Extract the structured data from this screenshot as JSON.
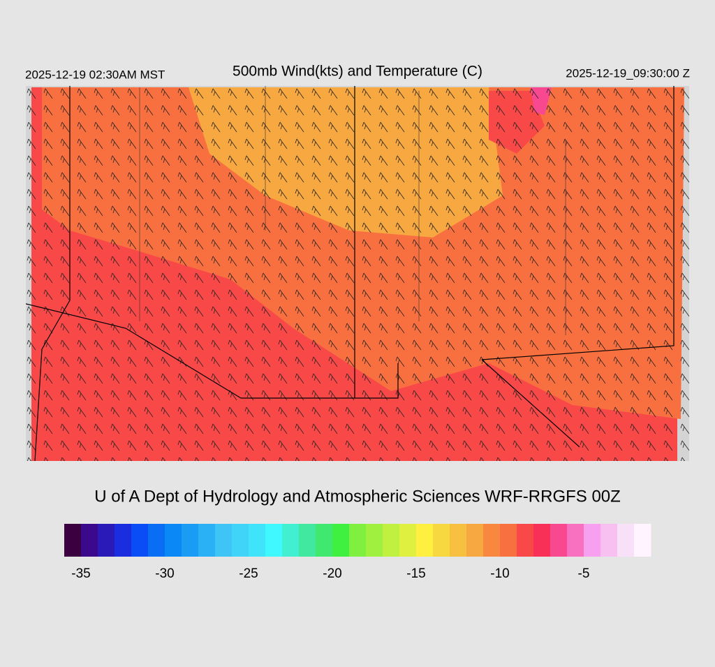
{
  "header": {
    "left": "2025-12-19 02:30AM MST",
    "title": "500mb Wind(kts) and Temperature (C)",
    "right": "2025-12-19_09:30:00 Z"
  },
  "footer": {
    "credit": "U of A Dept of Hydrology and Atmospheric Sciences WRF-RRGFS 00Z"
  },
  "colorbar": {
    "lim": [
      -36,
      -1
    ],
    "ticks": [
      -35,
      -30,
      -25,
      -20,
      -15,
      -10,
      -5
    ],
    "colors": [
      "#3a0040",
      "#3b0a8c",
      "#2a1ab8",
      "#1a2ee0",
      "#0a4cf5",
      "#0a6ef5",
      "#0a88f5",
      "#1a9cf5",
      "#2ab0f5",
      "#3ec4f5",
      "#40d4f8",
      "#40e4fa",
      "#40f8ff",
      "#40f0d0",
      "#40e8a0",
      "#40e870",
      "#40f040",
      "#80f040",
      "#a0f040",
      "#c0f040",
      "#e0f040",
      "#fff040",
      "#f8d840",
      "#f8c040",
      "#f8a840",
      "#f88840",
      "#f87040",
      "#f84848",
      "#f83058",
      "#f84890",
      "#f870c0",
      "#f8a0f0",
      "#f8c0f0",
      "#f8e0f8",
      "#fff4ff"
    ]
  }
}
